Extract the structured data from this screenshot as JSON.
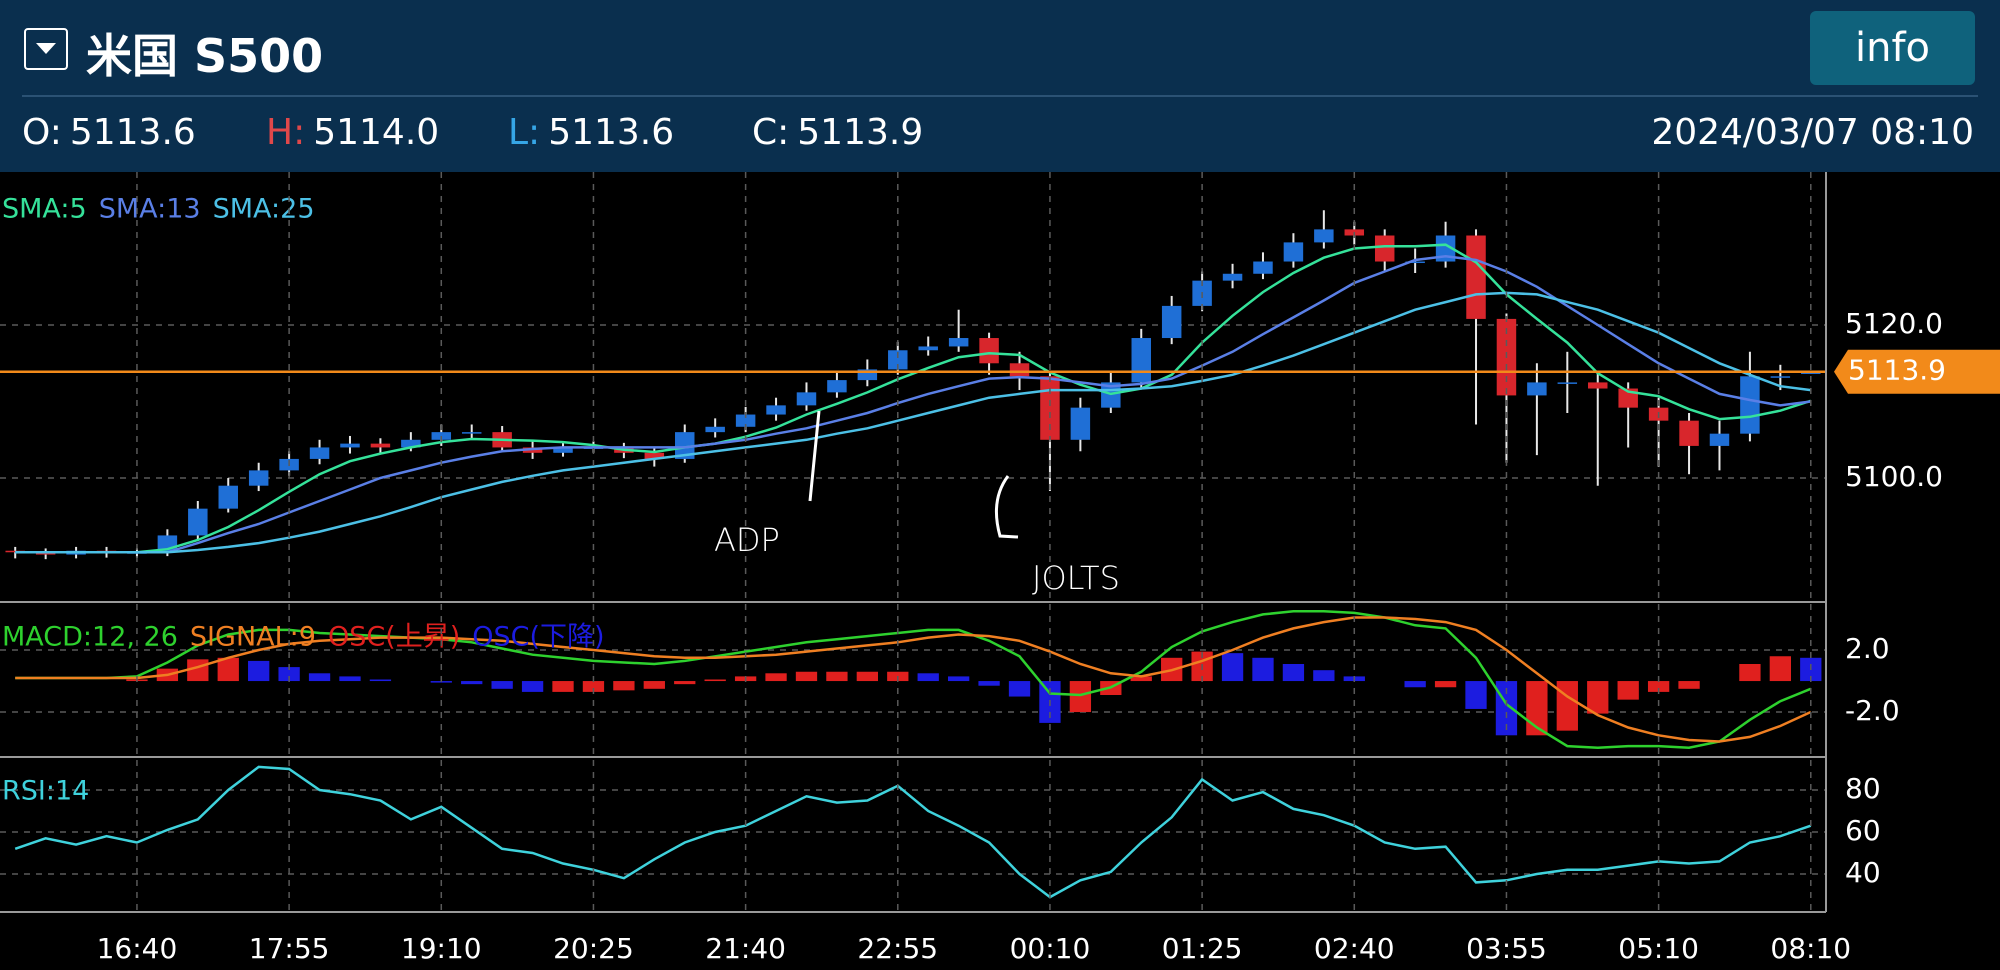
{
  "header": {
    "symbol": "米国 S500",
    "button": "info",
    "ohlc": [
      {
        "label": "O:",
        "value": "5113.6"
      },
      {
        "label": "H:",
        "value": "5114.0"
      },
      {
        "label": "L:",
        "value": "5113.6"
      },
      {
        "label": "C:",
        "value": "5113.9"
      }
    ],
    "datetime": "2024/03/07 08:10"
  },
  "chart_data": [
    {
      "type": "candlestick",
      "up_color": "#1f6fd6",
      "down_color": "#d8262c",
      "grid": true,
      "ylim": [
        5083.8,
        5140
      ],
      "yticks": [
        {
          "value": 5100,
          "label": "5100.0"
        },
        {
          "value": 5120,
          "label": "5120.0"
        }
      ],
      "last_price": {
        "value": 5113.9,
        "label": "5113.9",
        "color": "#f28a1a"
      },
      "annotations": [
        "ADP",
        "JOLTS"
      ],
      "open": [
        5090.5,
        5090.3,
        5090.0,
        5090.5,
        5090.2,
        5090.3,
        5092.5,
        5096,
        5099,
        5101,
        5102.5,
        5104,
        5104.5,
        5104,
        5105,
        5106,
        5106,
        5104,
        5103.3,
        5104,
        5104,
        5103.3,
        5102.5,
        5106,
        5106.7,
        5108.3,
        5109.5,
        5111.2,
        5112.8,
        5114.2,
        5116.7,
        5117.2,
        5118.3,
        5115,
        5113.3,
        5105,
        5109.2,
        5112.5,
        5118.3,
        5122.5,
        5125.8,
        5126.7,
        5128.3,
        5130.8,
        5132.5,
        5131.7,
        5128.3,
        5128.3,
        5131.7,
        5120.8,
        5110.8,
        5112.5,
        5112.5,
        5111.7,
        5109.2,
        5107.5,
        5104.2,
        5105.8,
        5113.3,
        5113.6
      ],
      "high": [
        5091.0,
        5090.8,
        5091.0,
        5091.0,
        5090.8,
        5093.3,
        5097,
        5100,
        5102,
        5103.5,
        5105,
        5105.5,
        5105.2,
        5106,
        5107,
        5107,
        5106.8,
        5104.8,
        5104.8,
        5104.8,
        5104.6,
        5104,
        5107,
        5107.8,
        5109.3,
        5110.5,
        5112.5,
        5114,
        5115.5,
        5117.8,
        5118.5,
        5122,
        5119,
        5116.5,
        5114,
        5110.5,
        5114,
        5119.5,
        5123.8,
        5127,
        5128,
        5129.5,
        5132,
        5135,
        5133.5,
        5132.5,
        5130,
        5133.5,
        5132.5,
        5121.5,
        5115,
        5116.5,
        5114,
        5112.5,
        5110.5,
        5108.5,
        5107.5,
        5116.5,
        5114.8,
        5114.0
      ],
      "low": [
        5089.5,
        5089.4,
        5089.5,
        5089.6,
        5089.6,
        5089.8,
        5091.8,
        5095.5,
        5098.3,
        5100.3,
        5101.8,
        5103.2,
        5103.3,
        5103.5,
        5104.2,
        5105.2,
        5103.5,
        5102.5,
        5102.8,
        5103.3,
        5102.6,
        5101.5,
        5102,
        5105.3,
        5106,
        5107.5,
        5108.8,
        5110.5,
        5112,
        5113.5,
        5116,
        5116.5,
        5113.5,
        5111.5,
        5098.3,
        5103.5,
        5108.5,
        5111.8,
        5117.5,
        5121.8,
        5124.8,
        5126,
        5127.5,
        5130,
        5130.5,
        5127,
        5126.8,
        5127.5,
        5107,
        5102,
        5103,
        5108.5,
        5099,
        5104,
        5101.5,
        5100.5,
        5101,
        5104.8,
        5111.5,
        5113.6
      ],
      "close": [
        5090.3,
        5090.0,
        5090.5,
        5090.2,
        5090.3,
        5092.5,
        5096,
        5099,
        5101,
        5102.5,
        5104,
        5104.5,
        5104,
        5105,
        5106,
        5106,
        5104,
        5103.3,
        5104,
        5104,
        5103.3,
        5102.5,
        5106,
        5106.7,
        5108.3,
        5109.5,
        5111.2,
        5112.8,
        5114.2,
        5116.7,
        5117.2,
        5118.3,
        5115,
        5113.3,
        5105,
        5109.2,
        5112.5,
        5118.3,
        5122.5,
        5125.8,
        5126.7,
        5128.3,
        5130.8,
        5132.5,
        5131.7,
        5128.3,
        5128.3,
        5131.7,
        5120.8,
        5110.8,
        5112.5,
        5112.5,
        5111.7,
        5109.2,
        5107.5,
        5104.2,
        5105.8,
        5113.3,
        5113.3,
        5113.9
      ],
      "series": [
        {
          "name": "SMA:5",
          "color": "#35e29a",
          "values": [
            5090.3,
            5090.3,
            5090.3,
            5090.3,
            5090.3,
            5090.7,
            5091.9,
            5093.6,
            5095.8,
            5098.2,
            5100.5,
            5102.2,
            5103.2,
            5104.0,
            5104.7,
            5105.1,
            5105.0,
            5104.9,
            5104.7,
            5104.3,
            5103.7,
            5103.4,
            5104.0,
            5104.5,
            5105.4,
            5106.6,
            5108.3,
            5109.7,
            5111.2,
            5112.9,
            5114.4,
            5115.8,
            5116.3,
            5116.1,
            5113.8,
            5112.2,
            5111.0,
            5111.7,
            5113.5,
            5117.7,
            5121.2,
            5124.3,
            5126.8,
            5128.8,
            5130.0,
            5130.3,
            5130.3,
            5130.5,
            5128.2,
            5124.0,
            5120.8,
            5117.7,
            5113.7,
            5111.3,
            5110.7,
            5109.0,
            5107.7,
            5108.0,
            5108.8,
            5110.1
          ]
        },
        {
          "name": "SMA:13",
          "color": "#5a7fe6",
          "values": [
            5090.3,
            5090.3,
            5090.3,
            5090.3,
            5090.3,
            5090.3,
            5091.5,
            5092.8,
            5094,
            5095.5,
            5097,
            5098.5,
            5100,
            5101,
            5102,
            5102.8,
            5103.5,
            5103.8,
            5104,
            5104,
            5104,
            5104,
            5104,
            5104.5,
            5105,
            5105.8,
            5106.5,
            5107.5,
            5108.5,
            5109.8,
            5111,
            5112,
            5113,
            5113.2,
            5113,
            5112.5,
            5112,
            5112.3,
            5113,
            5114.7,
            5116.5,
            5118.8,
            5121,
            5123.2,
            5125.5,
            5127,
            5128.5,
            5129,
            5128.5,
            5127,
            5125,
            5122.5,
            5120,
            5117.5,
            5115,
            5113,
            5111,
            5110.2,
            5109.5,
            5110
          ]
        },
        {
          "name": "SMA:25",
          "color": "#4cc0e6",
          "values": [
            5090.3,
            5090.3,
            5090.3,
            5090.3,
            5090.3,
            5090.3,
            5090.6,
            5091,
            5091.5,
            5092.2,
            5093,
            5094,
            5095,
            5096.2,
            5097.5,
            5098.5,
            5099.5,
            5100.3,
            5101,
            5101.5,
            5102,
            5102.5,
            5103,
            5103.5,
            5104,
            5104.5,
            5105,
            5105.8,
            5106.5,
            5107.5,
            5108.5,
            5109.5,
            5110.5,
            5111,
            5111.5,
            5111.5,
            5111.5,
            5111.7,
            5112,
            5112.7,
            5113.5,
            5114.7,
            5116,
            5117.5,
            5119,
            5120.5,
            5122,
            5123,
            5124,
            5124.2,
            5124,
            5123,
            5122,
            5120.5,
            5119,
            5117,
            5115,
            5113.5,
            5112,
            5111.5
          ]
        }
      ]
    },
    {
      "type": "macd",
      "grid": true,
      "ylim": [
        -4.9,
        5.1
      ],
      "yticks": [
        {
          "value": 2,
          "label": "2.0"
        },
        {
          "value": -2,
          "label": "-2.0"
        }
      ],
      "series": [
        {
          "name": "MACD:12, 26",
          "color": "#2ed12e",
          "values": [
            0.2,
            0.2,
            0.2,
            0.2,
            0.3,
            1.2,
            2.3,
            3.0,
            3.3,
            3.3,
            3.1,
            3.0,
            2.9,
            2.8,
            2.7,
            2.5,
            2.1,
            1.7,
            1.5,
            1.3,
            1.2,
            1.1,
            1.3,
            1.6,
            1.9,
            2.2,
            2.5,
            2.7,
            2.9,
            3.1,
            3.3,
            3.3,
            2.6,
            1.6,
            -0.8,
            -0.9,
            -0.4,
            0.6,
            2.2,
            3.2,
            3.8,
            4.3,
            4.5,
            4.5,
            4.4,
            4.1,
            3.6,
            3.4,
            1.5,
            -1.5,
            -3.0,
            -4.2,
            -4.3,
            -4.2,
            -4.2,
            -4.3,
            -3.9,
            -2.5,
            -1.3,
            -0.5
          ]
        },
        {
          "name": "SIGNAL:9",
          "color": "#ef7f22",
          "values": [
            0.2,
            0.2,
            0.2,
            0.2,
            0.2,
            0.4,
            0.9,
            1.5,
            2.0,
            2.4,
            2.6,
            2.7,
            2.8,
            2.8,
            2.8,
            2.7,
            2.6,
            2.4,
            2.2,
            2.0,
            1.8,
            1.6,
            1.5,
            1.5,
            1.6,
            1.7,
            1.9,
            2.1,
            2.3,
            2.5,
            2.8,
            3.0,
            2.9,
            2.6,
            1.9,
            1.1,
            0.5,
            0.3,
            0.7,
            1.3,
            2.0,
            2.8,
            3.4,
            3.8,
            4.1,
            4.1,
            4.0,
            3.8,
            3.3,
            2.0,
            0.5,
            -1.0,
            -2.2,
            -3.0,
            -3.5,
            -3.8,
            -3.9,
            -3.6,
            -2.9,
            -2.0
          ]
        }
      ],
      "histogram": {
        "up": {
          "name": "OSC(上昇)",
          "color": "#e0201e"
        },
        "down": {
          "name": "OSC(下降)",
          "color": "#1c1ce0"
        },
        "values": [
          0,
          0,
          0,
          0,
          0.1,
          0.8,
          1.4,
          1.5,
          1.3,
          0.9,
          0.5,
          0.3,
          0.1,
          0,
          -0.1,
          -0.2,
          -0.5,
          -0.7,
          -0.7,
          -0.7,
          -0.6,
          -0.5,
          -0.2,
          0.1,
          0.3,
          0.5,
          0.6,
          0.6,
          0.6,
          0.6,
          0.5,
          0.3,
          -0.3,
          -1.0,
          -2.7,
          -2.0,
          -0.9,
          0.3,
          1.5,
          1.9,
          1.8,
          1.5,
          1.1,
          0.7,
          0.3,
          0,
          -0.4,
          -0.4,
          -1.8,
          -3.5,
          -3.5,
          -3.2,
          -2.1,
          -1.2,
          -0.7,
          -0.5,
          0,
          1.1,
          1.6,
          1.5
        ]
      }
    },
    {
      "type": "line",
      "grid": true,
      "ylim": [
        21.9,
        95.7
      ],
      "yticks": [
        80,
        60,
        40
      ],
      "categories": [
        null,
        null,
        null,
        null,
        "16:40",
        null,
        null,
        null,
        null,
        "17:55",
        null,
        null,
        null,
        null,
        "19:10",
        null,
        null,
        null,
        null,
        "20:25",
        null,
        null,
        null,
        null,
        "21:40",
        null,
        null,
        null,
        null,
        "22:55",
        null,
        null,
        null,
        null,
        "00:10",
        null,
        null,
        null,
        null,
        "01:25",
        null,
        null,
        null,
        null,
        "02:40",
        null,
        null,
        null,
        null,
        "03:55",
        null,
        null,
        null,
        null,
        "05:10",
        null,
        null,
        null,
        null,
        "08:10"
      ],
      "series": [
        {
          "name": "RSI:14",
          "color": "#3fd2dc",
          "values": [
            52,
            57,
            54,
            58,
            55,
            61,
            66,
            80,
            91,
            90,
            80,
            78,
            75,
            66,
            72,
            62,
            52,
            50,
            45,
            42,
            38,
            47,
            55,
            60,
            63,
            70,
            77,
            74,
            75,
            82,
            70,
            63,
            55,
            40,
            29,
            37,
            41,
            55,
            67,
            85,
            75,
            79,
            71,
            68,
            63,
            55,
            52,
            53,
            36,
            37,
            40,
            42,
            42,
            44,
            46,
            45,
            46,
            55,
            58,
            63
          ]
        }
      ]
    }
  ]
}
